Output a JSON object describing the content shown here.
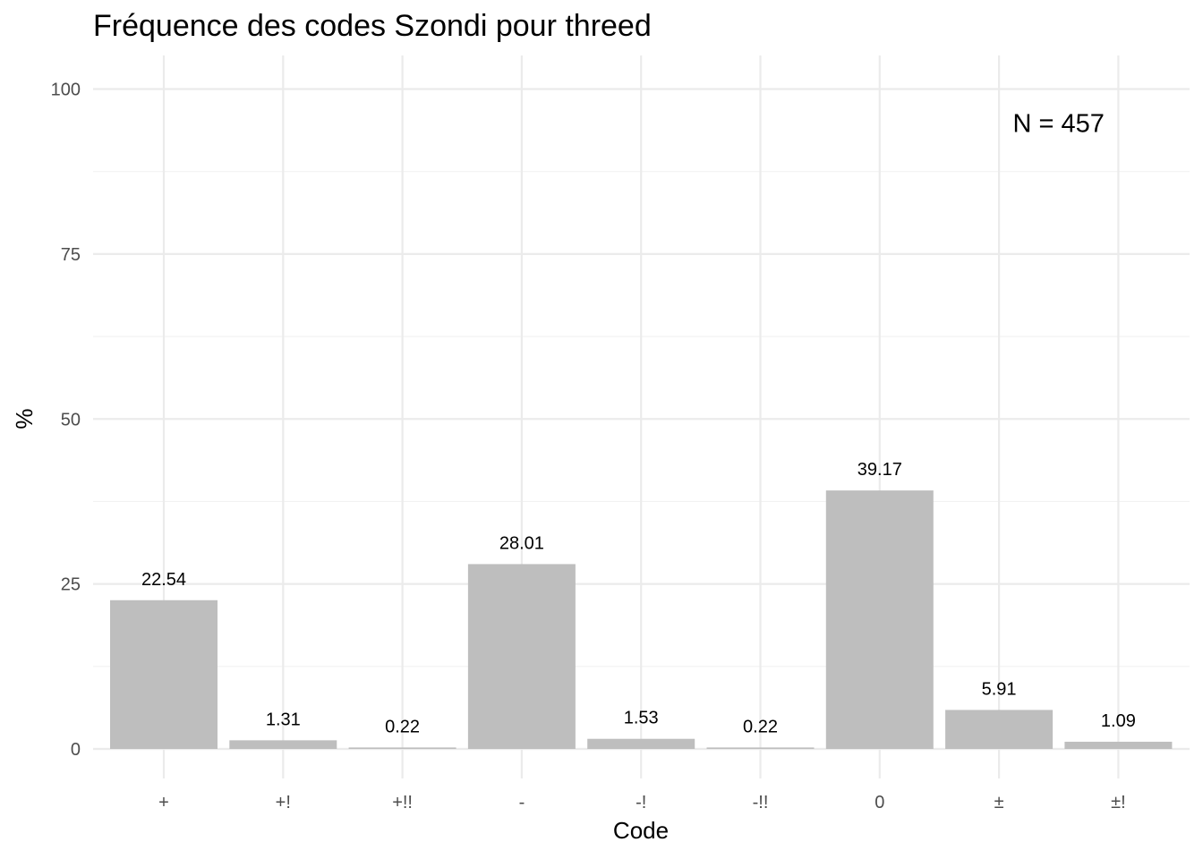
{
  "chart_data": {
    "type": "bar",
    "title": "Fréquence des codes Szondi pour threed",
    "xlabel": "Code",
    "ylabel": "%",
    "categories": [
      "+",
      "+!",
      "+!!",
      "-",
      "-!",
      "-!!",
      "0",
      "±",
      "±!"
    ],
    "values": [
      22.54,
      1.31,
      0.22,
      28.01,
      1.53,
      0.22,
      39.17,
      5.91,
      1.09
    ],
    "data_labels": [
      "22.54",
      "1.31",
      "0.22",
      "28.01",
      "1.53",
      "0.22",
      "39.17",
      "5.91",
      "1.09"
    ],
    "ylim": [
      0,
      100
    ],
    "yticks": [
      0,
      25,
      50,
      75,
      100
    ],
    "ytick_labels": [
      "0",
      "25",
      "50",
      "75",
      "100"
    ],
    "grid": true,
    "bar_color": "#bebebe",
    "annotation": {
      "text": "N = 457",
      "x": 7.5,
      "y": 95
    }
  }
}
